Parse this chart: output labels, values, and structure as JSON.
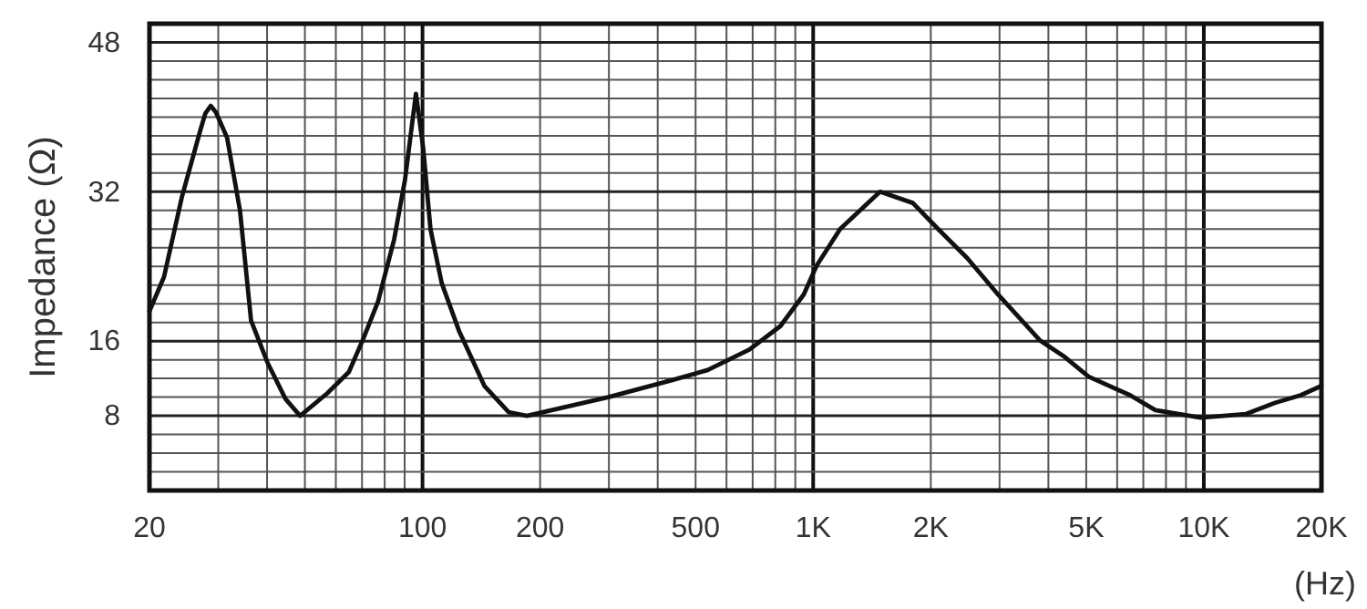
{
  "chart_data": {
    "type": "line",
    "xlabel": "(Hz)",
    "ylabel": "Impedance (Ω)",
    "log": "x",
    "grid": true,
    "line_style": "solid",
    "marker": "none",
    "xlim": [
      20,
      20000
    ],
    "ylim": [
      0,
      50
    ],
    "xticks": [
      20,
      {
        "value": 30,
        "label": null
      },
      {
        "value": 40,
        "label": null
      },
      {
        "value": 50,
        "label": null
      },
      {
        "value": 60,
        "label": null
      },
      {
        "value": 70,
        "label": null
      },
      {
        "value": 80,
        "label": null
      },
      {
        "value": 90,
        "label": null
      },
      100,
      200,
      {
        "value": 300,
        "label": null
      },
      {
        "value": 400,
        "label": null
      },
      500,
      {
        "value": 600,
        "label": null
      },
      {
        "value": 700,
        "label": null
      },
      {
        "value": 800,
        "label": null
      },
      {
        "value": 900,
        "label": null
      },
      {
        "value": 1000,
        "label": "1K"
      },
      {
        "value": 2000,
        "label": "2K"
      },
      {
        "value": 3000,
        "label": null
      },
      {
        "value": 4000,
        "label": null
      },
      {
        "value": 5000,
        "label": "5K"
      },
      {
        "value": 6000,
        "label": null
      },
      {
        "value": 7000,
        "label": null
      },
      {
        "value": 8000,
        "label": null
      },
      {
        "value": 9000,
        "label": null
      },
      {
        "value": 10000,
        "label": "10K"
      },
      {
        "value": 20000,
        "label": "20K"
      }
    ],
    "yticks": [
      {
        "value": 2,
        "label": null
      },
      {
        "value": 4,
        "label": null
      },
      {
        "value": 6,
        "label": null
      },
      8,
      {
        "value": 10,
        "label": null
      },
      {
        "value": 12,
        "label": null
      },
      {
        "value": 14,
        "label": null
      },
      16,
      {
        "value": 18,
        "label": null
      },
      {
        "value": 20,
        "label": null
      },
      {
        "value": 22,
        "label": null
      },
      {
        "value": 24,
        "label": null
      },
      {
        "value": 26,
        "label": null
      },
      {
        "value": 28,
        "label": null
      },
      {
        "value": 30,
        "label": null
      },
      32,
      {
        "value": 34,
        "label": null
      },
      {
        "value": 36,
        "label": null
      },
      {
        "value": 38,
        "label": null
      },
      {
        "value": 40,
        "label": null
      },
      {
        "value": 42,
        "label": null
      },
      {
        "value": 44,
        "label": null
      },
      {
        "value": 46,
        "label": null
      },
      48
    ],
    "series": [
      {
        "color": "#111111",
        "x": [
          20,
          21.8,
          24.2,
          27,
          27.8,
          28.7,
          29.6,
          31.6,
          34.1,
          36.4,
          40.1,
          44.6,
          48.6,
          57,
          64.8,
          70.6,
          76.9,
          84.6,
          90.2,
          96.2,
          100.4,
          104.8,
          112,
          124,
          144,
          166,
          185,
          299,
          434,
          537,
          687,
          824,
          946,
          1021,
          1172,
          1483,
          1799,
          2089,
          2478,
          2972,
          3802,
          4406,
          5070,
          6475,
          7516,
          9817,
          12830,
          15240,
          17700,
          20000
        ],
        "values": [
          19.2,
          22.9,
          31.4,
          38.6,
          40.4,
          41.2,
          40.5,
          37.8,
          30,
          18.2,
          13.7,
          9.8,
          8,
          10.4,
          12.7,
          16.3,
          20.2,
          26.9,
          33.3,
          42.5,
          36.7,
          28,
          22.2,
          17.1,
          11.2,
          8.4,
          8,
          10,
          11.8,
          12.9,
          15.1,
          17.6,
          21,
          24.1,
          28,
          32,
          30.8,
          28,
          24.9,
          21,
          16.1,
          14.3,
          12.2,
          10.2,
          8.6,
          7.8,
          8.2,
          9.4,
          10.2,
          11.2
        ]
      }
    ]
  }
}
